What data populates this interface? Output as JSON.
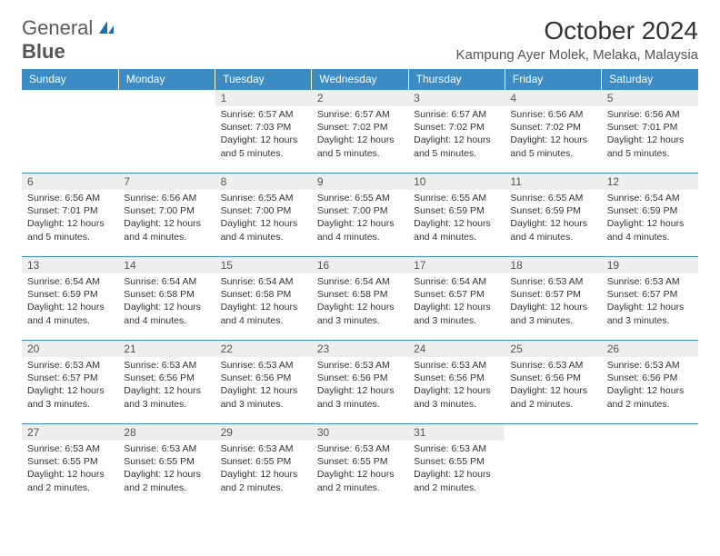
{
  "logo": {
    "text1": "General",
    "text2": "Blue"
  },
  "title": "October 2024",
  "location": "Kampung Ayer Molek, Melaka, Malaysia",
  "colors": {
    "header_bg": "#3b8bc4",
    "header_text": "#ffffff",
    "daynum_bg": "#eeeeee",
    "border": "#3b8bc4",
    "logo_accent": "#1f6fae"
  },
  "weekdays": [
    "Sunday",
    "Monday",
    "Tuesday",
    "Wednesday",
    "Thursday",
    "Friday",
    "Saturday"
  ],
  "weeks": [
    [
      {
        "empty": true
      },
      {
        "empty": true
      },
      {
        "num": "1",
        "sunrise": "6:57 AM",
        "sunset": "7:03 PM",
        "daylight": "12 hours and 5 minutes."
      },
      {
        "num": "2",
        "sunrise": "6:57 AM",
        "sunset": "7:02 PM",
        "daylight": "12 hours and 5 minutes."
      },
      {
        "num": "3",
        "sunrise": "6:57 AM",
        "sunset": "7:02 PM",
        "daylight": "12 hours and 5 minutes."
      },
      {
        "num": "4",
        "sunrise": "6:56 AM",
        "sunset": "7:02 PM",
        "daylight": "12 hours and 5 minutes."
      },
      {
        "num": "5",
        "sunrise": "6:56 AM",
        "sunset": "7:01 PM",
        "daylight": "12 hours and 5 minutes."
      }
    ],
    [
      {
        "num": "6",
        "sunrise": "6:56 AM",
        "sunset": "7:01 PM",
        "daylight": "12 hours and 5 minutes."
      },
      {
        "num": "7",
        "sunrise": "6:56 AM",
        "sunset": "7:00 PM",
        "daylight": "12 hours and 4 minutes."
      },
      {
        "num": "8",
        "sunrise": "6:55 AM",
        "sunset": "7:00 PM",
        "daylight": "12 hours and 4 minutes."
      },
      {
        "num": "9",
        "sunrise": "6:55 AM",
        "sunset": "7:00 PM",
        "daylight": "12 hours and 4 minutes."
      },
      {
        "num": "10",
        "sunrise": "6:55 AM",
        "sunset": "6:59 PM",
        "daylight": "12 hours and 4 minutes."
      },
      {
        "num": "11",
        "sunrise": "6:55 AM",
        "sunset": "6:59 PM",
        "daylight": "12 hours and 4 minutes."
      },
      {
        "num": "12",
        "sunrise": "6:54 AM",
        "sunset": "6:59 PM",
        "daylight": "12 hours and 4 minutes."
      }
    ],
    [
      {
        "num": "13",
        "sunrise": "6:54 AM",
        "sunset": "6:59 PM",
        "daylight": "12 hours and 4 minutes."
      },
      {
        "num": "14",
        "sunrise": "6:54 AM",
        "sunset": "6:58 PM",
        "daylight": "12 hours and 4 minutes."
      },
      {
        "num": "15",
        "sunrise": "6:54 AM",
        "sunset": "6:58 PM",
        "daylight": "12 hours and 4 minutes."
      },
      {
        "num": "16",
        "sunrise": "6:54 AM",
        "sunset": "6:58 PM",
        "daylight": "12 hours and 3 minutes."
      },
      {
        "num": "17",
        "sunrise": "6:54 AM",
        "sunset": "6:57 PM",
        "daylight": "12 hours and 3 minutes."
      },
      {
        "num": "18",
        "sunrise": "6:53 AM",
        "sunset": "6:57 PM",
        "daylight": "12 hours and 3 minutes."
      },
      {
        "num": "19",
        "sunrise": "6:53 AM",
        "sunset": "6:57 PM",
        "daylight": "12 hours and 3 minutes."
      }
    ],
    [
      {
        "num": "20",
        "sunrise": "6:53 AM",
        "sunset": "6:57 PM",
        "daylight": "12 hours and 3 minutes."
      },
      {
        "num": "21",
        "sunrise": "6:53 AM",
        "sunset": "6:56 PM",
        "daylight": "12 hours and 3 minutes."
      },
      {
        "num": "22",
        "sunrise": "6:53 AM",
        "sunset": "6:56 PM",
        "daylight": "12 hours and 3 minutes."
      },
      {
        "num": "23",
        "sunrise": "6:53 AM",
        "sunset": "6:56 PM",
        "daylight": "12 hours and 3 minutes."
      },
      {
        "num": "24",
        "sunrise": "6:53 AM",
        "sunset": "6:56 PM",
        "daylight": "12 hours and 3 minutes."
      },
      {
        "num": "25",
        "sunrise": "6:53 AM",
        "sunset": "6:56 PM",
        "daylight": "12 hours and 2 minutes."
      },
      {
        "num": "26",
        "sunrise": "6:53 AM",
        "sunset": "6:56 PM",
        "daylight": "12 hours and 2 minutes."
      }
    ],
    [
      {
        "num": "27",
        "sunrise": "6:53 AM",
        "sunset": "6:55 PM",
        "daylight": "12 hours and 2 minutes."
      },
      {
        "num": "28",
        "sunrise": "6:53 AM",
        "sunset": "6:55 PM",
        "daylight": "12 hours and 2 minutes."
      },
      {
        "num": "29",
        "sunrise": "6:53 AM",
        "sunset": "6:55 PM",
        "daylight": "12 hours and 2 minutes."
      },
      {
        "num": "30",
        "sunrise": "6:53 AM",
        "sunset": "6:55 PM",
        "daylight": "12 hours and 2 minutes."
      },
      {
        "num": "31",
        "sunrise": "6:53 AM",
        "sunset": "6:55 PM",
        "daylight": "12 hours and 2 minutes."
      },
      {
        "empty": true
      },
      {
        "empty": true
      }
    ]
  ],
  "labels": {
    "sunrise": "Sunrise:",
    "sunset": "Sunset:",
    "daylight": "Daylight:"
  }
}
